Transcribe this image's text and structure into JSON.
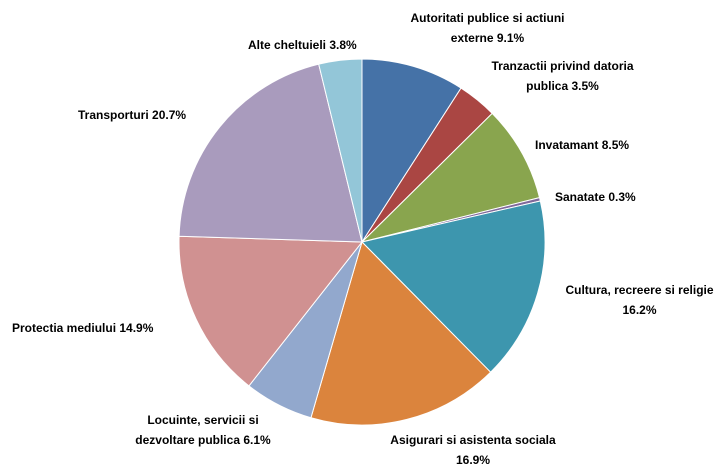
{
  "chart_data": {
    "type": "pie",
    "categories": [
      "Autoritati publice si actiuni externe",
      "Tranzactii privind datoria publica",
      "Invatamant",
      "Sanatate",
      "Cultura, recreere si religie",
      "Asigurari si asistenta sociala",
      "Locuinte, servicii si dezvoltare publica",
      "Protectia mediului",
      "Transporturi",
      "Alte cheltuieli"
    ],
    "values": [
      9.1,
      3.5,
      8.5,
      0.3,
      16.2,
      16.9,
      6.1,
      14.9,
      20.7,
      3.8
    ],
    "value_labels": [
      "9.1%",
      "3.5%",
      "8.5%",
      "0.3%",
      "16.2%",
      "16.9%",
      "6.1%",
      "14.9%",
      "20.7%",
      "3.8%"
    ],
    "colors": [
      "#4572a7",
      "#aa4643",
      "#89a54e",
      "#80699b",
      "#3d96ae",
      "#db843d",
      "#92a8cd",
      "#d09191",
      "#a99bbd",
      "#93c6d8"
    ]
  }
}
